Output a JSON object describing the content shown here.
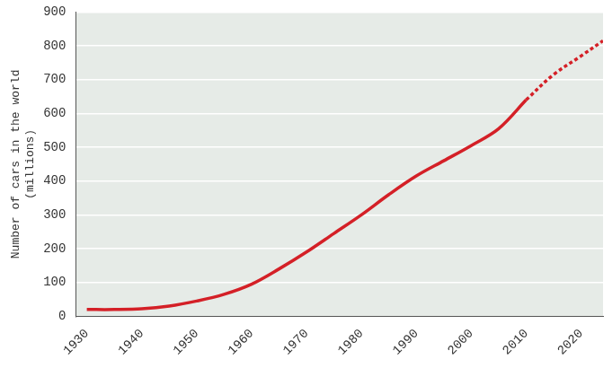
{
  "chart_data": {
    "type": "line",
    "y_label": [
      "Number of cars in the world",
      "(millions)"
    ],
    "x": [
      1930,
      1935,
      1940,
      1945,
      1950,
      1955,
      1960,
      1965,
      1970,
      1975,
      1980,
      1985,
      1990,
      1995,
      2000,
      2005,
      2010,
      2015,
      2020,
      2024
    ],
    "series": [
      {
        "color": "#d42027",
        "line_style": "solid",
        "values": [
          20,
          20,
          22,
          30,
          45,
          65,
          95,
          140,
          190,
          245,
          300,
          360,
          415,
          460,
          505,
          555,
          640,
          null,
          null,
          null
        ]
      },
      {
        "color": "#d42027",
        "line_style": "dashed",
        "values": [
          null,
          null,
          null,
          null,
          null,
          null,
          null,
          null,
          null,
          null,
          null,
          null,
          null,
          null,
          null,
          null,
          640,
          715,
          770,
          815
        ]
      }
    ],
    "xlim": [
      1928,
      2024
    ],
    "xticks": [
      1930,
      1940,
      1950,
      1960,
      1970,
      1980,
      1990,
      2000,
      2010,
      2020
    ],
    "ylim": [
      0,
      900
    ],
    "yticks": [
      0,
      100,
      200,
      300,
      400,
      500,
      600,
      700,
      800,
      900
    ],
    "grid": "y"
  }
}
